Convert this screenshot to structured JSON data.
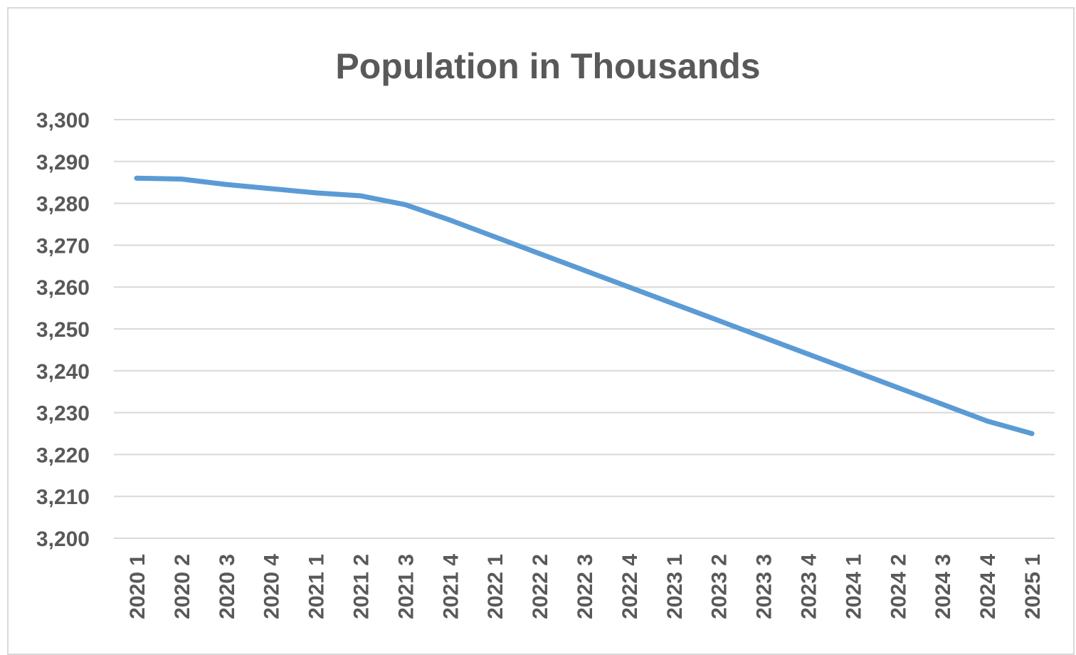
{
  "chart_data": {
    "type": "line",
    "title": "Population in Thousands",
    "xlabel": "",
    "ylabel": "",
    "categories": [
      "2020 1",
      "2020 2",
      "2020 3",
      "2020 4",
      "2021 1",
      "2021 2",
      "2021 3",
      "2021 4",
      "2022 1",
      "2022 2",
      "2022 3",
      "2022 4",
      "2023 1",
      "2023 2",
      "2023 3",
      "2023 4",
      "2024 1",
      "2024 2",
      "2024 3",
      "2024 4",
      "2025 1"
    ],
    "series": [
      {
        "color": "#5b9bd5",
        "values": [
          3286,
          3285.8,
          3284.5,
          3283.5,
          3282.5,
          3281.8,
          3279.7,
          3276,
          3272,
          3268,
          3264,
          3260,
          3256,
          3252,
          3248,
          3244,
          3240,
          3236,
          3232,
          3228,
          3225
        ]
      }
    ],
    "ylim": [
      3200,
      3300
    ],
    "y_ticks": [
      "3,300",
      "3,290",
      "3,280",
      "3,270",
      "3,260",
      "3,250",
      "3,240",
      "3,230",
      "3,220",
      "3,210",
      "3,200"
    ],
    "grid": true,
    "gridline_color": "#d9d9d9",
    "legend": "none"
  }
}
